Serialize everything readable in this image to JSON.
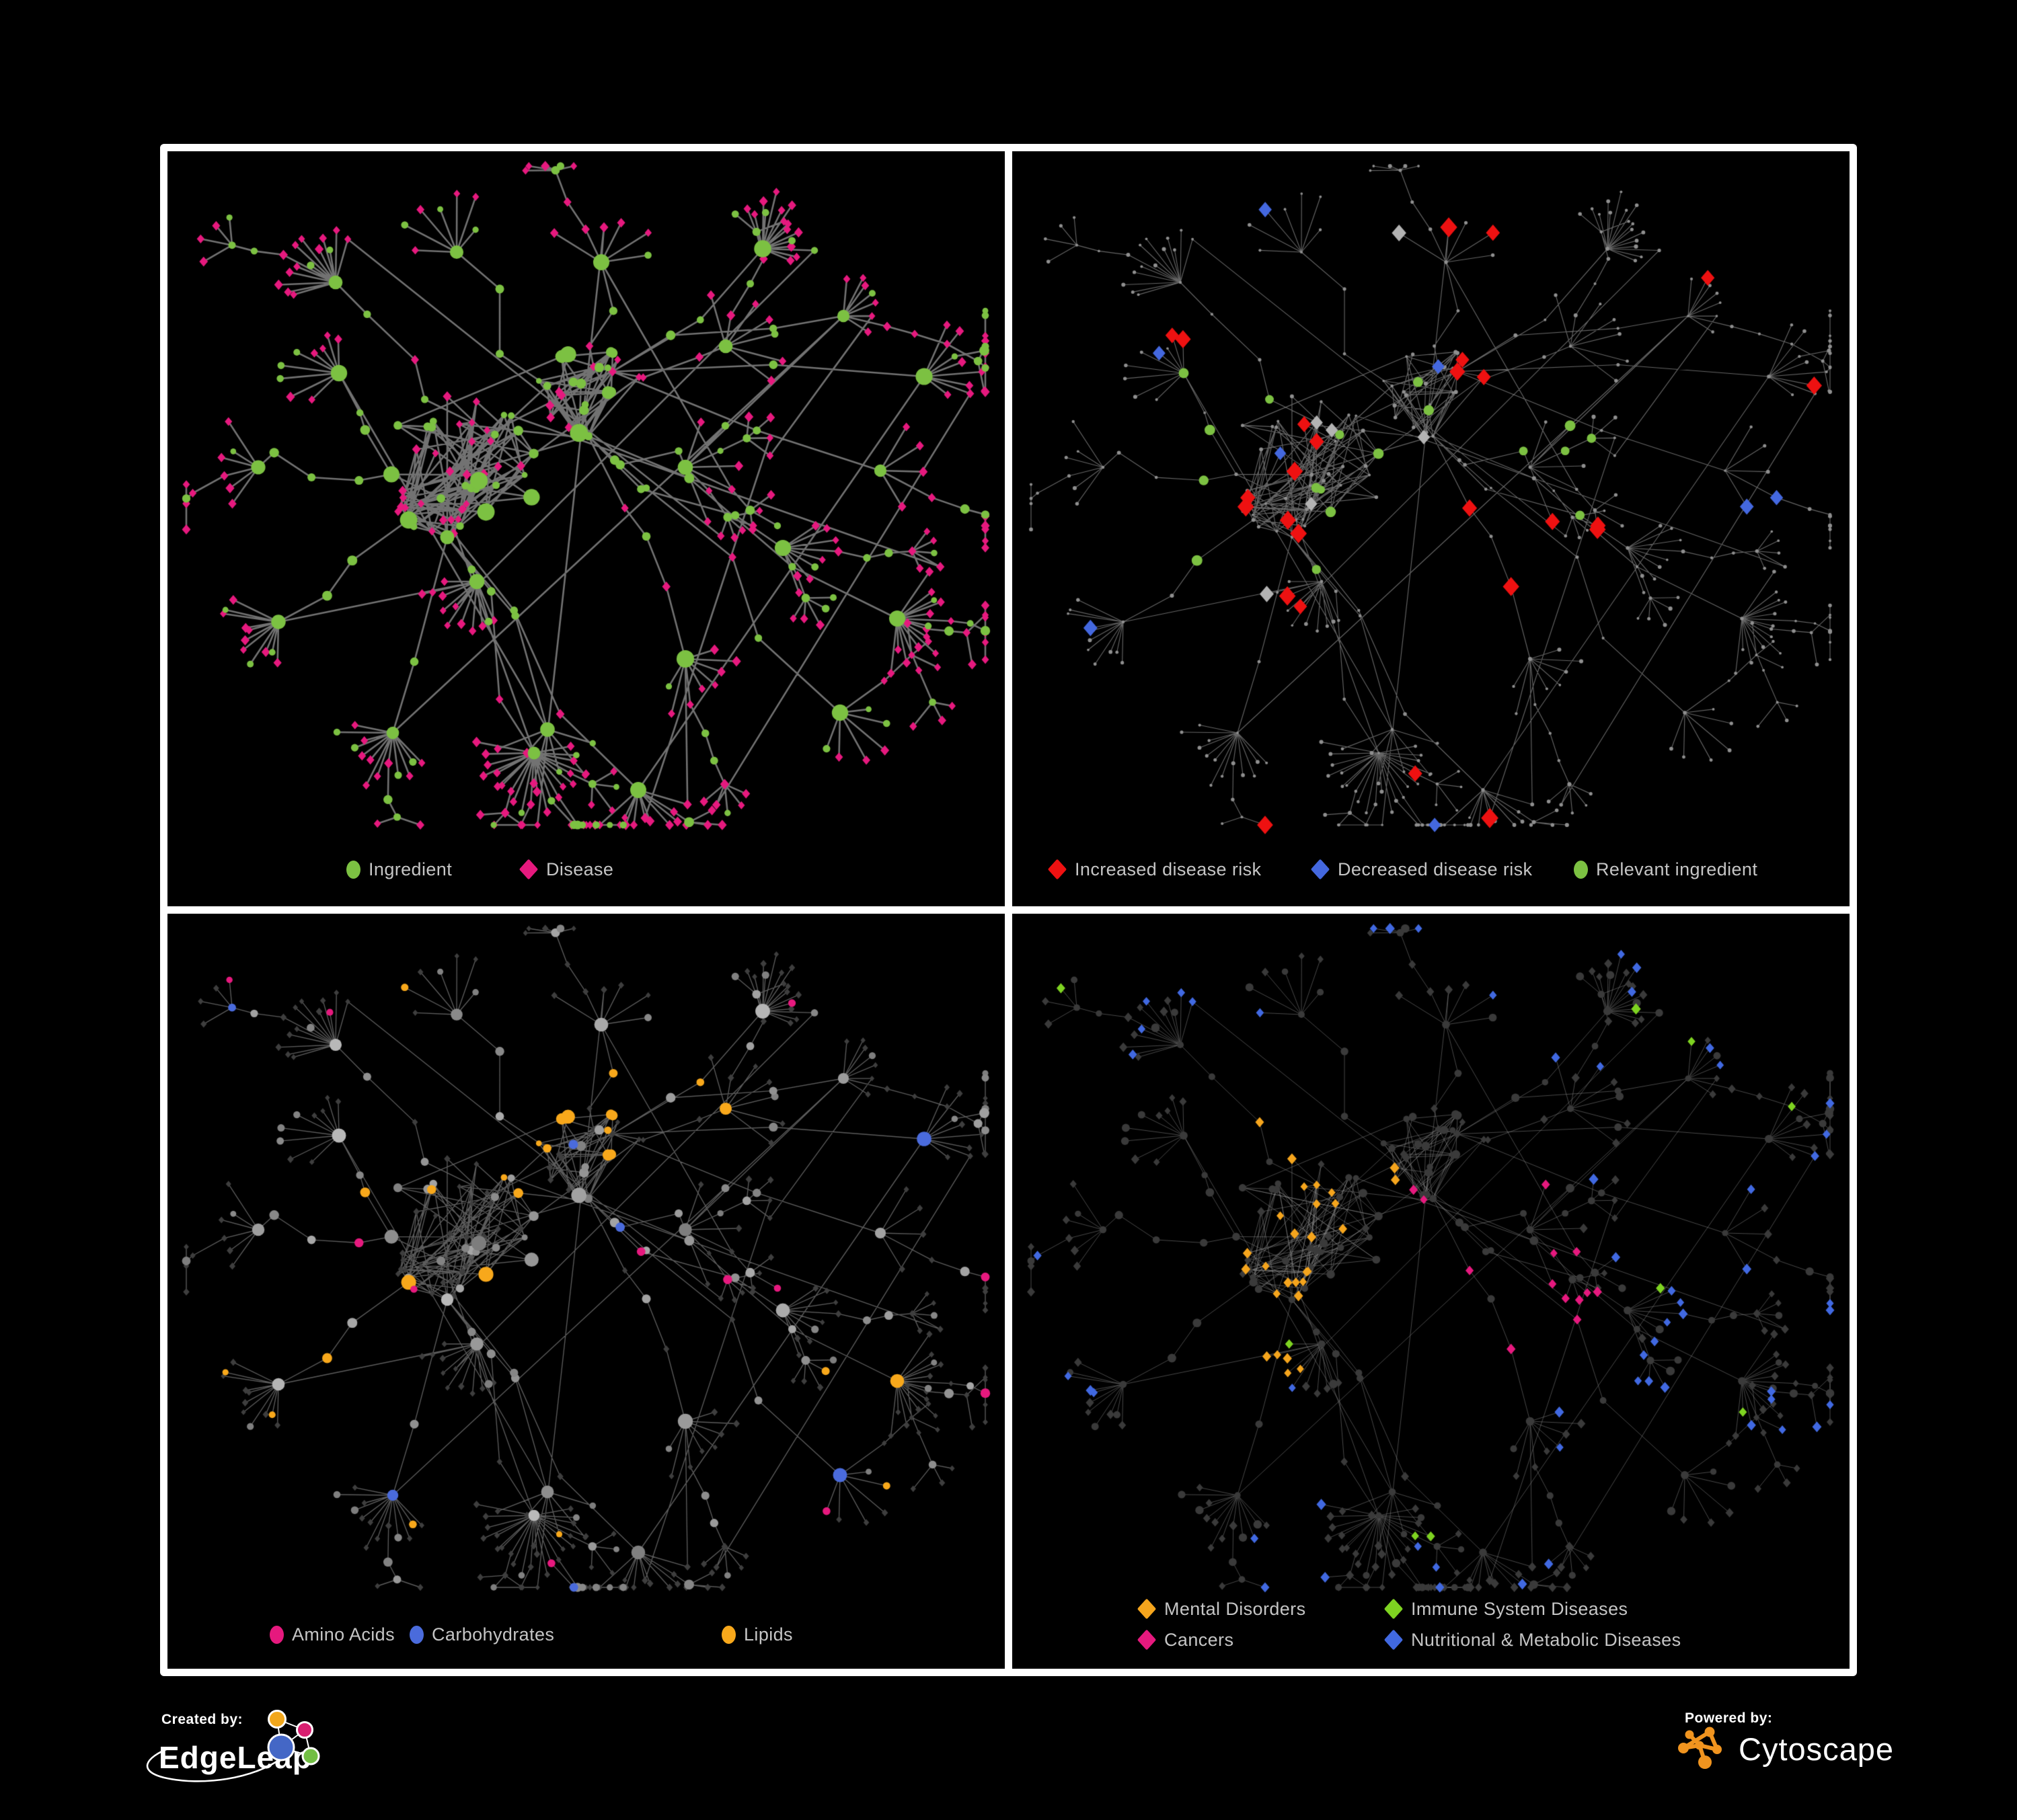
{
  "figure": {
    "background": "#000000",
    "frame_color": "#ffffff"
  },
  "panels": [
    {
      "name": "ingredient-disease-network",
      "legend": [
        {
          "label": "Ingredient",
          "shape": "circle",
          "color": "#7cc142"
        },
        {
          "label": "Disease",
          "shape": "diamond",
          "color": "#e6197e"
        }
      ]
    },
    {
      "name": "disease-risk-network",
      "legend": [
        {
          "label": "Increased disease risk",
          "shape": "diamond",
          "color": "#ee1111"
        },
        {
          "label": "Decreased disease risk",
          "shape": "diamond",
          "color": "#4468df"
        },
        {
          "label": "Relevant ingredient",
          "shape": "circle",
          "color": "#7cc142"
        }
      ]
    },
    {
      "name": "ingredient-class-network",
      "legend": [
        {
          "label": "Amino Acids",
          "shape": "circle",
          "color": "#e6197e"
        },
        {
          "label": "Carbohydrates",
          "shape": "circle",
          "color": "#4a6bdc"
        },
        {
          "label": "Lipids",
          "shape": "circle",
          "color": "#f8a81b"
        }
      ]
    },
    {
      "name": "disease-class-network",
      "legend": [
        {
          "label": "Mental Disorders",
          "shape": "diamond",
          "color": "#f5a51d"
        },
        {
          "label": "Immune System Diseases",
          "shape": "diamond",
          "color": "#7ed321"
        },
        {
          "label": "Cancers",
          "shape": "diamond",
          "color": "#e6197e"
        },
        {
          "label": "Nutritional & Metabolic Diseases",
          "shape": "diamond",
          "color": "#4169e1"
        }
      ]
    }
  ],
  "network_colors": {
    "edge": "#787878",
    "edge_thin": "#6a6a6a",
    "edge_mid": "#737373",
    "edge_light": "#909090",
    "tiny_node": "#8f8f8f",
    "dark_node": "#3a3a3a",
    "dim_diamond": "#3e3e3e",
    "gray_node": "#9b9b9b",
    "silver": "#b3b3b3",
    "green": "#7cc142",
    "pink": "#e6197e",
    "red": "#ee1111",
    "blue": "#4468df",
    "royal": "#4a6bdc",
    "yellow": "#f8a81b",
    "orange": "#f5a51d",
    "lime": "#7ed321",
    "blue4": "#4169e1"
  },
  "footer": {
    "created_by_label": "Created by:",
    "created_by_brand": "EdgeLeap",
    "powered_by_label": "Powered by:",
    "powered_by_brand": "Cytoscape",
    "edgeleap_logo_colors": {
      "orange": "#f2a71b",
      "pink": "#d81e70",
      "blue": "#4467c6",
      "green": "#72be44"
    },
    "cytoscape_logo_color": "#f0941f"
  }
}
